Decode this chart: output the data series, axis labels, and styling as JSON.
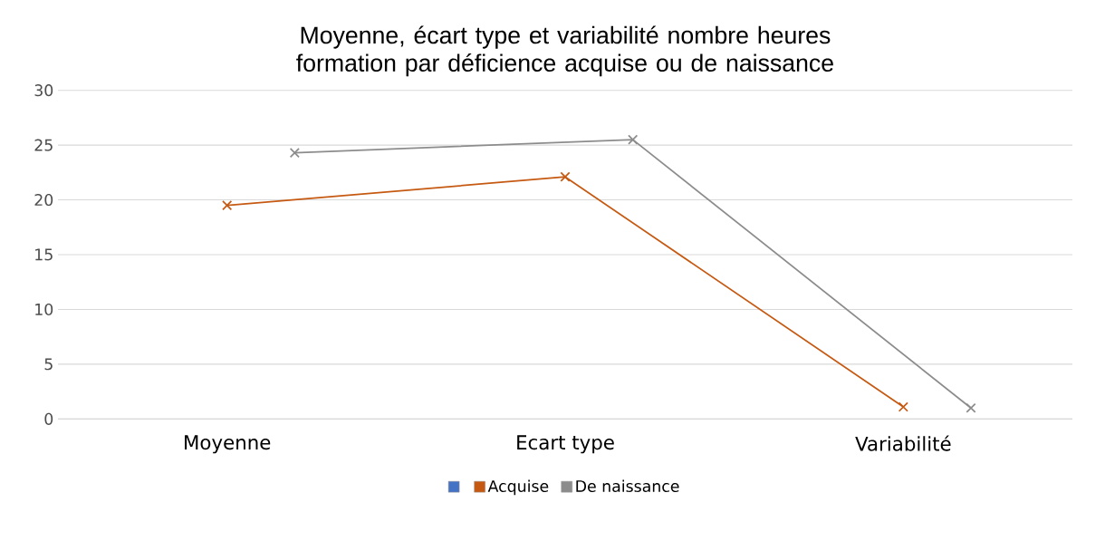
{
  "chart_data": {
    "type": "line",
    "title": "Moyenne, écart type et variabilité nombre heures formation par déficience acquise ou de naissance",
    "categories": [
      "Moyenne",
      "Ecart type",
      "Variabilité"
    ],
    "series": [
      {
        "color": "#4472c4",
        "values": [
          null,
          null,
          null
        ]
      },
      {
        "name": "Acquise",
        "color": "#c65911",
        "values": [
          19.5,
          22.1,
          1.1
        ]
      },
      {
        "name": "De naissance",
        "color": "#8c8c8c",
        "values": [
          24.3,
          25.5,
          1.0
        ]
      }
    ],
    "ylim": [
      0,
      30
    ],
    "yticks": [
      0,
      5,
      10,
      15,
      20,
      25,
      30
    ],
    "grid": "y",
    "legend": "bottom",
    "marker": "cross",
    "line_style": "solid"
  }
}
